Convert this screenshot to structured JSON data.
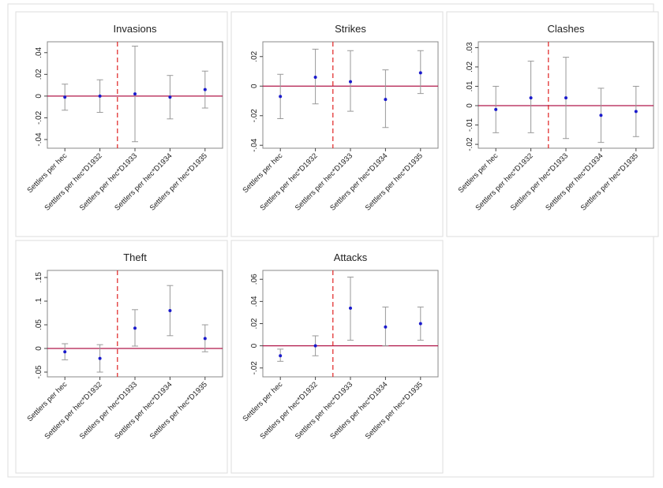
{
  "chart_data": [
    {
      "type": "errorbar",
      "title": "Invasions",
      "categories": [
        "Settlers per hec",
        "Settlers per hec*D1932",
        "Settlers per hec*D1933",
        "Settlers per hec*D1934",
        "Settlers per hec*D1935"
      ],
      "values": [
        -0.001,
        0,
        0.002,
        -0.001,
        0.006
      ],
      "lower": [
        -0.013,
        -0.015,
        -0.042,
        -0.021,
        -0.011
      ],
      "upper": [
        0.011,
        0.015,
        0.046,
        0.019,
        0.023
      ],
      "ylim": [
        -0.048,
        0.05
      ],
      "yticks": [
        {
          "value": -0.04,
          "label": "-.04"
        },
        {
          "value": -0.02,
          "label": "-.02"
        },
        0,
        {
          "value": 0.02,
          "label": ".02"
        },
        {
          "value": 0.04,
          "label": ".04"
        }
      ],
      "color": "#1a1acc"
    },
    {
      "type": "errorbar",
      "title": "Strikes",
      "categories": [
        "Settlers per hec",
        "Settlers per hec*D1932",
        "Settlers per hec*D1933",
        "Settlers per hec*D1934",
        "Settlers per hec*D1935"
      ],
      "values": [
        -0.007,
        0.006,
        0.003,
        -0.009,
        0.009
      ],
      "lower": [
        -0.022,
        -0.012,
        -0.017,
        -0.028,
        -0.005
      ],
      "upper": [
        0.008,
        0.025,
        0.024,
        0.011,
        0.024
      ],
      "ylim": [
        -0.042,
        0.03
      ],
      "yticks": [
        {
          "value": -0.04,
          "label": "-.04"
        },
        {
          "value": -0.02,
          "label": "-.02"
        },
        0,
        {
          "value": 0.02,
          "label": ".02"
        }
      ],
      "color": "#1a1acc"
    },
    {
      "type": "errorbar",
      "title": "Clashes",
      "categories": [
        "Settlers per hec",
        "Settlers per hec*D1932",
        "Settlers per hec*D1933",
        "Settlers per hec*D1934",
        "Settlers per hec*D1935"
      ],
      "values": [
        -0.002,
        0.004,
        0.004,
        -0.005,
        -0.003
      ],
      "lower": [
        -0.014,
        -0.014,
        -0.017,
        -0.019,
        -0.016
      ],
      "upper": [
        0.01,
        0.023,
        0.025,
        0.009,
        0.01
      ],
      "ylim": [
        -0.022,
        0.033
      ],
      "yticks": [
        {
          "value": -0.02,
          "label": "-.02"
        },
        {
          "value": -0.01,
          "label": "-.01"
        },
        0,
        {
          "value": 0.01,
          "label": ".01"
        },
        {
          "value": 0.02,
          "label": ".02"
        },
        {
          "value": 0.03,
          "label": ".03"
        }
      ],
      "color": "#1a1acc"
    },
    {
      "type": "errorbar",
      "title": "Theft",
      "categories": [
        "Settlers per hec",
        "Settlers per hec*D1932",
        "Settlers per hec*D1933",
        "Settlers per hec*D1934",
        "Settlers per hec*D1935"
      ],
      "values": [
        -0.007,
        -0.021,
        0.043,
        0.08,
        0.021
      ],
      "lower": [
        -0.024,
        -0.05,
        0.005,
        0.027,
        -0.007
      ],
      "upper": [
        0.01,
        0.008,
        0.082,
        0.133,
        0.05
      ],
      "ylim": [
        -0.06,
        0.165
      ],
      "yticks": [
        {
          "value": -0.05,
          "label": "-.05"
        },
        0,
        {
          "value": 0.05,
          "label": ".05"
        },
        {
          "value": 0.1,
          "label": ".1"
        },
        {
          "value": 0.15,
          "label": ".15"
        }
      ],
      "color": "#1a1acc"
    },
    {
      "type": "errorbar",
      "title": "Attacks",
      "categories": [
        "Settlers per hec",
        "Settlers per hec*D1932",
        "Settlers per hec*D1933",
        "Settlers per hec*D1934",
        "Settlers per hec*D1935"
      ],
      "values": [
        -0.009,
        0,
        0.034,
        0.017,
        0.02
      ],
      "lower": [
        -0.014,
        -0.009,
        0.005,
        0,
        0.005
      ],
      "upper": [
        -0.003,
        0.009,
        0.062,
        0.035,
        0.035
      ],
      "ylim": [
        -0.028,
        0.068
      ],
      "yticks": [
        {
          "value": -0.02,
          "label": "-.02"
        },
        0,
        {
          "value": 0.02,
          "label": ".02"
        },
        {
          "value": 0.04,
          "label": ".04"
        },
        {
          "value": 0.06,
          "label": ".06"
        }
      ],
      "color": "#1a1acc"
    }
  ]
}
